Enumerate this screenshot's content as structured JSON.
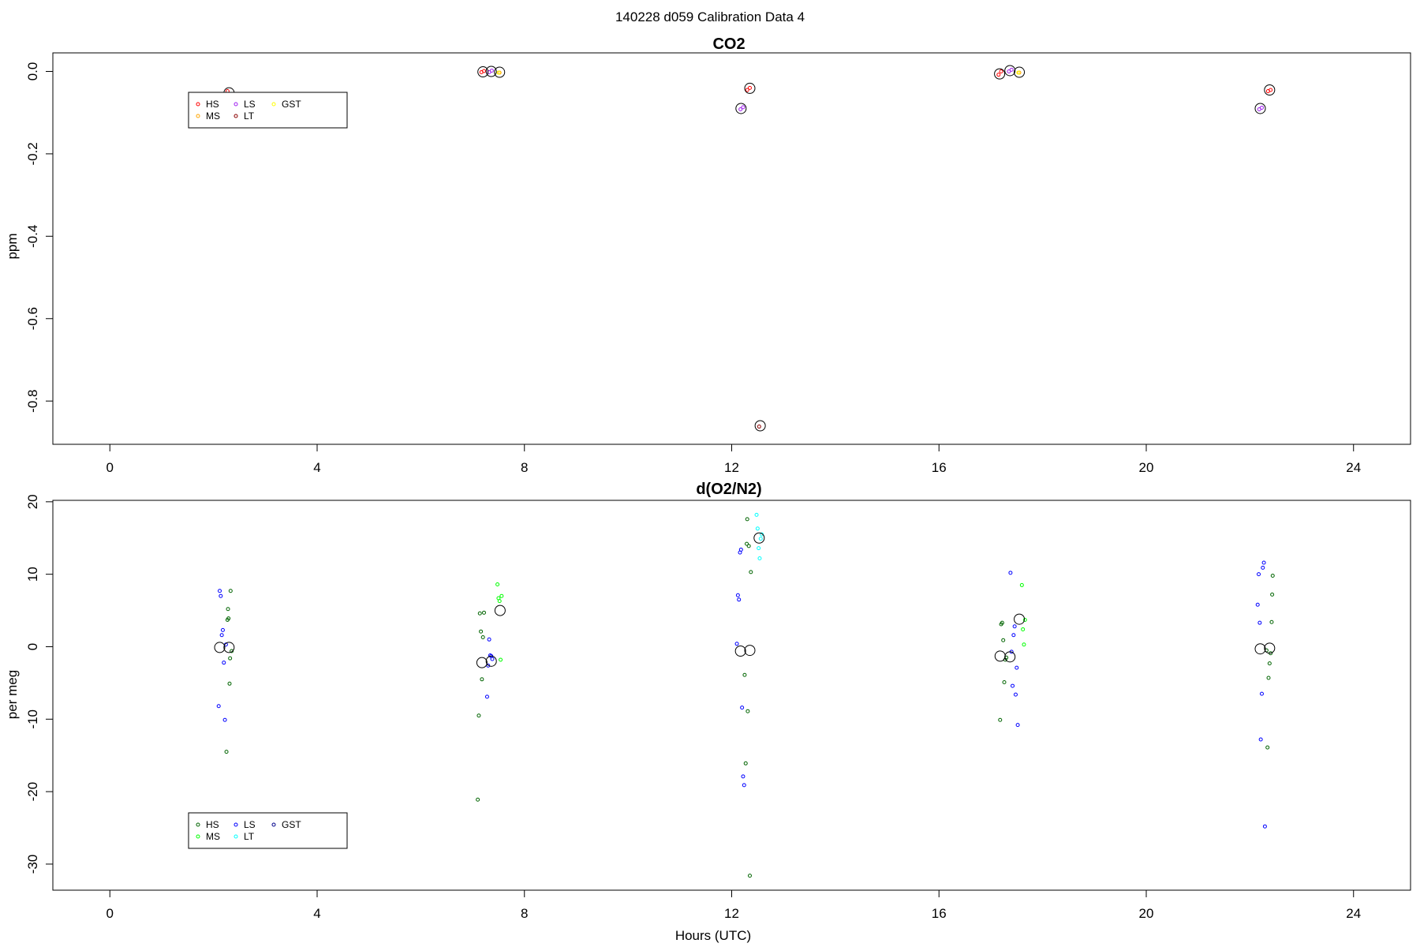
{
  "suptitle": "140228   d059   Calibration Data 4",
  "chart_data": [
    {
      "type": "scatter",
      "title": "CO2",
      "xlabel": "",
      "ylabel": "ppm",
      "xlim": [
        -1.1,
        25.1
      ],
      "ylim": [
        -0.905,
        0.045
      ],
      "xticks": [
        0,
        4,
        8,
        12,
        16,
        20,
        24
      ],
      "yticks": [
        0.0,
        -0.2,
        -0.4,
        -0.6,
        -0.8
      ],
      "ytick_labels": [
        "0.0",
        "-0.2",
        "-0.4",
        "-0.6",
        "-0.8"
      ],
      "legend": {
        "position": "top-left",
        "entries": [
          {
            "label": "HS",
            "color": "#ff0000"
          },
          {
            "label": "MS",
            "color": "#ffa500"
          },
          {
            "label": "LS",
            "color": "#a020f0"
          },
          {
            "label": "LT",
            "color": "#8b0000"
          },
          {
            "label": "GST",
            "color": "#ffff00"
          }
        ]
      },
      "series": [
        {
          "name": "HS",
          "color": "#ff0000",
          "x": [
            2.27,
            7.17,
            7.22,
            12.3,
            12.35,
            17.15,
            17.2,
            22.35,
            22.4
          ],
          "y": [
            -0.048,
            -0.002,
            0.001,
            -0.045,
            -0.04,
            -0.008,
            0.0,
            -0.048,
            -0.045
          ]
        },
        {
          "name": "MS",
          "color": "#ffa500",
          "x": [
            7.52,
            17.55
          ],
          "y": [
            -0.003,
            -0.003
          ]
        },
        {
          "name": "LS",
          "color": "#a020f0",
          "x": [
            7.32,
            7.37,
            12.17,
            12.22,
            17.35,
            17.4,
            22.18,
            22.23
          ],
          "y": [
            -0.002,
            0.002,
            -0.092,
            -0.087,
            0.0,
            0.004,
            -0.092,
            -0.088
          ]
        },
        {
          "name": "LT",
          "color": "#8b0000",
          "x": [
            12.53
          ],
          "y": [
            -0.862
          ]
        },
        {
          "name": "GST",
          "color": "#ffff00",
          "x": [
            7.5,
            17.53
          ],
          "y": [
            -0.003,
            -0.003
          ]
        }
      ],
      "means": {
        "x": [
          2.3,
          7.2,
          7.36,
          7.52,
          12.18,
          12.35,
          12.55,
          17.17,
          17.37,
          17.55,
          22.2,
          22.38
        ],
        "y": [
          -0.052,
          -0.001,
          0.0,
          -0.002,
          -0.09,
          -0.041,
          -0.86,
          -0.006,
          0.002,
          -0.002,
          -0.09,
          -0.045
        ]
      }
    },
    {
      "type": "scatter",
      "title": "d(O2/N2)",
      "xlabel": "Hours (UTC)",
      "ylabel": "per meg",
      "xlim": [
        -1.1,
        25.1
      ],
      "ylim": [
        -33.6,
        20.2
      ],
      "xticks": [
        0,
        4,
        8,
        12,
        16,
        20,
        24
      ],
      "yticks": [
        20,
        10,
        0,
        -10,
        -20,
        -30
      ],
      "ytick_labels": [
        "20",
        "10",
        "0",
        "-10",
        "-20",
        "-30"
      ],
      "legend": {
        "position": "bottom-left",
        "entries": [
          {
            "label": "HS",
            "color": "#006400"
          },
          {
            "label": "MS",
            "color": "#00ff00"
          },
          {
            "label": "LS",
            "color": "#0000ff"
          },
          {
            "label": "LT",
            "color": "#00ffff"
          },
          {
            "label": "GST",
            "color": "#00008b"
          }
        ]
      },
      "series": [
        {
          "name": "HS",
          "color": "#006400",
          "x": [
            2.25,
            2.27,
            2.28,
            2.29,
            2.31,
            2.32,
            2.33,
            2.35,
            7.1,
            7.12,
            7.14,
            7.16,
            7.18,
            7.2,
            7.22,
            12.25,
            12.27,
            12.29,
            12.3,
            12.31,
            12.33,
            12.35,
            12.37,
            17.18,
            17.2,
            17.22,
            17.24,
            17.26,
            17.28,
            17.3,
            22.32,
            22.34,
            22.36,
            22.38,
            22.4,
            22.42,
            22.43,
            22.44
          ],
          "y": [
            -14.5,
            3.7,
            5.2,
            3.9,
            -5.1,
            -1.6,
            7.7,
            -0.6,
            -21.1,
            -9.5,
            4.6,
            2.1,
            -4.5,
            1.3,
            4.7,
            -3.9,
            -16.1,
            14.2,
            17.6,
            -8.9,
            13.9,
            -31.6,
            10.3,
            -10.1,
            3.1,
            3.3,
            0.9,
            -4.9,
            -1.8,
            -1.5,
            -0.5,
            -13.9,
            -4.3,
            -2.3,
            -0.9,
            3.4,
            7.2,
            9.8
          ]
        },
        {
          "name": "MS",
          "color": "#00ff00",
          "x": [
            7.48,
            7.5,
            7.52,
            7.54,
            7.56,
            17.6,
            17.62,
            17.64,
            17.66
          ],
          "y": [
            8.6,
            6.7,
            6.3,
            -1.8,
            7.0,
            8.5,
            2.4,
            0.3,
            3.7
          ]
        },
        {
          "name": "LS",
          "color": "#0000ff",
          "x": [
            2.1,
            2.12,
            2.14,
            2.16,
            2.18,
            2.2,
            2.22,
            2.24,
            7.28,
            7.3,
            7.32,
            7.34,
            7.36,
            7.38,
            12.1,
            12.12,
            12.14,
            12.16,
            12.18,
            12.2,
            12.22,
            12.24,
            17.38,
            17.4,
            17.42,
            17.44,
            17.46,
            17.48,
            17.5,
            17.52,
            22.15,
            22.17,
            22.19,
            22.21,
            22.23,
            22.25,
            22.27,
            22.29
          ],
          "y": [
            -8.2,
            7.7,
            7.0,
            1.6,
            2.3,
            -2.2,
            -10.1,
            0.3,
            -6.9,
            -2.6,
            1.0,
            -1.2,
            -1.3,
            -1.7,
            0.4,
            7.1,
            6.5,
            13.0,
            13.4,
            -8.4,
            -17.9,
            -19.1,
            10.2,
            -0.7,
            -5.4,
            1.6,
            2.8,
            -6.6,
            -2.9,
            -10.8,
            5.8,
            10.0,
            3.3,
            -12.8,
            -6.5,
            10.9,
            11.6,
            -24.8
          ]
        },
        {
          "name": "LT",
          "color": "#00ffff",
          "x": [
            12.48,
            12.5,
            12.52,
            12.54,
            12.56,
            12.58
          ],
          "y": [
            18.2,
            16.3,
            13.6,
            12.2,
            14.9,
            15.5
          ]
        },
        {
          "name": "GST",
          "color": "#00008b",
          "x": [],
          "y": []
        }
      ],
      "means": {
        "x": [
          2.12,
          2.3,
          7.18,
          7.36,
          7.53,
          12.17,
          12.35,
          12.53,
          17.18,
          17.37,
          17.55,
          22.2,
          22.38
        ],
        "y": [
          -0.1,
          -0.1,
          -2.2,
          -2.0,
          5.0,
          -0.6,
          -0.5,
          15.0,
          -1.3,
          -1.4,
          3.8,
          -0.3,
          -0.2
        ]
      }
    }
  ]
}
